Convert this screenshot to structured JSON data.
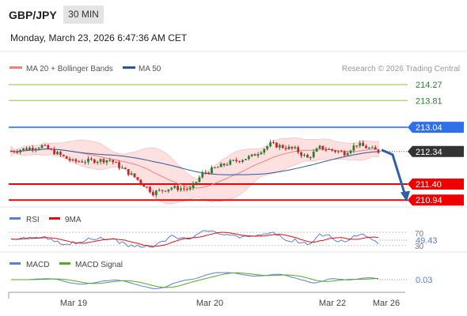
{
  "header": {
    "symbol": "GBP/JPY",
    "timeframe": "30 MIN",
    "datetime": "Monday, March 23, 2026 6:47:36 AM CET"
  },
  "legend": {
    "ma20_bb": "MA 20 + Bollinger Bands",
    "ma50": "MA 50",
    "credit": "Research © 2026 Trading Central"
  },
  "colors": {
    "up": "#2e7d32",
    "down": "#c62828",
    "ma20": "#f08080",
    "bb_fill": "#fde0e0",
    "ma50": "#2f5597",
    "resistance_weak": "#8bc34a",
    "resistance_strong": "#4f86f7",
    "support": "#ee0000",
    "arrow": "#2f5fa8",
    "last": "#333333",
    "rsi": "#5b7fd4",
    "rsi_ma": "#dd1111",
    "macd": "#5b7fd4",
    "macd_signal": "#55aa22"
  },
  "chart_data": [
    {
      "type": "candlestick",
      "title": "GBP/JPY 30 MIN",
      "ylim": [
        210.74,
        214.5
      ],
      "levels": [
        {
          "value": 214.27,
          "label": "214.27",
          "kind": "resistance_weak"
        },
        {
          "value": 213.81,
          "label": "213.81",
          "kind": "resistance_weak"
        },
        {
          "value": 213.04,
          "label": "213.04",
          "kind": "resistance_strong"
        },
        {
          "value": 212.34,
          "label": "212.34",
          "kind": "last"
        },
        {
          "value": 211.4,
          "label": "211.40",
          "kind": "support"
        },
        {
          "value": 210.94,
          "label": "210.94",
          "kind": "support"
        }
      ],
      "x_ticks": [
        "Mar 19",
        "Mar 20",
        "Mar 22",
        "Mar 26"
      ],
      "trend_start": 212.35,
      "trend_waypoints": [
        {
          "dx": -1.3,
          "dy": -0.1
        },
        {
          "dx": 1.4,
          "dy": 0.1
        },
        {
          "dx": 1.2,
          "dy": -0.1
        },
        {
          "dx": -2.5,
          "dy": 0.0
        },
        {
          "dx": 2.9,
          "dy": -0.1
        },
        {
          "dx": 1.5,
          "dy": 0.1
        }
      ],
      "arrow": {
        "from": 212.34,
        "to": 211.07
      }
    },
    {
      "type": "line",
      "name": "RSI",
      "series_labels": [
        "RSI",
        "9MA"
      ],
      "levels": [
        "70",
        "30"
      ],
      "last_value": "49.43",
      "ylim": [
        20,
        80
      ]
    },
    {
      "type": "line",
      "name": "MACD",
      "series_labels": [
        "MACD",
        "MACD Signal"
      ],
      "last_value": "0.03"
    }
  ]
}
